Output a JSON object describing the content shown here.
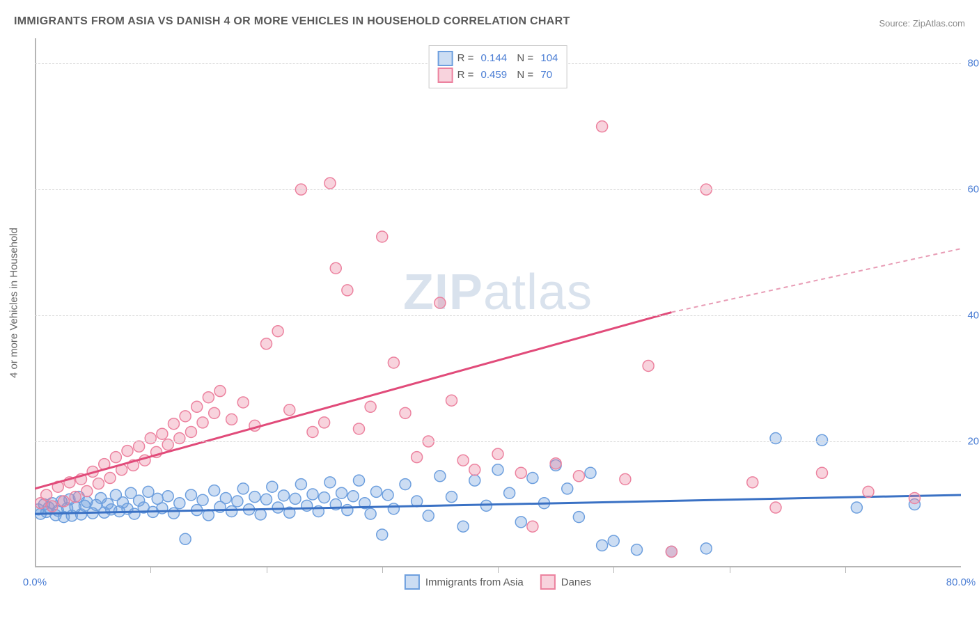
{
  "title": "IMMIGRANTS FROM ASIA VS DANISH 4 OR MORE VEHICLES IN HOUSEHOLD CORRELATION CHART",
  "source": "Source: ZipAtlas.com",
  "ylabel": "4 or more Vehicles in Household",
  "watermark": {
    "zip": "ZIP",
    "atlas": "atlas"
  },
  "chart": {
    "type": "scatter",
    "xlim": [
      0,
      80
    ],
    "ylim": [
      0,
      84
    ],
    "ytick_values": [
      20,
      40,
      60,
      80
    ],
    "ytick_labels": [
      "20.0%",
      "40.0%",
      "60.0%",
      "80.0%"
    ],
    "xtick_values": [
      0,
      80
    ],
    "xtick_labels": [
      "0.0%",
      "80.0%"
    ],
    "xtick_marks": [
      10,
      20,
      30,
      40,
      50,
      60,
      70
    ],
    "background": "#ffffff",
    "grid_color": "#d8d8d8",
    "axis_color": "#b5b5b5",
    "marker_radius": 8,
    "series": [
      {
        "name": "Immigrants from Asia",
        "fill": "rgba(109,159,222,0.35)",
        "stroke": "#6d9fde",
        "r": "0.144",
        "n": "104",
        "trend": {
          "x1": 0,
          "y1": 8.5,
          "x2": 80,
          "y2": 11.5,
          "color": "#3a71c4",
          "width": 3
        },
        "points": [
          [
            0.3,
            9.2
          ],
          [
            0.5,
            8.5
          ],
          [
            0.8,
            10
          ],
          [
            1,
            8.8
          ],
          [
            1.2,
            9.5
          ],
          [
            1.5,
            10.2
          ],
          [
            1.8,
            8.3
          ],
          [
            2,
            9.0
          ],
          [
            2.3,
            10.5
          ],
          [
            2.5,
            8.0
          ],
          [
            2.8,
            9.4
          ],
          [
            3,
            10.8
          ],
          [
            3.2,
            8.2
          ],
          [
            3.5,
            9.6
          ],
          [
            3.8,
            11.2
          ],
          [
            4,
            8.4
          ],
          [
            4.3,
            9.8
          ],
          [
            4.5,
            10.4
          ],
          [
            5,
            8.6
          ],
          [
            5.3,
            9.9
          ],
          [
            5.7,
            11
          ],
          [
            6,
            8.7
          ],
          [
            6.3,
            10.1
          ],
          [
            6.6,
            9.2
          ],
          [
            7,
            11.5
          ],
          [
            7.3,
            8.9
          ],
          [
            7.6,
            10.3
          ],
          [
            8,
            9.3
          ],
          [
            8.3,
            11.8
          ],
          [
            8.6,
            8.5
          ],
          [
            9,
            10.6
          ],
          [
            9.4,
            9.5
          ],
          [
            9.8,
            12
          ],
          [
            10.2,
            8.8
          ],
          [
            10.6,
            10.9
          ],
          [
            11,
            9.4
          ],
          [
            11.5,
            11.3
          ],
          [
            12,
            8.6
          ],
          [
            12.5,
            10.2
          ],
          [
            13,
            4.5
          ],
          [
            13.5,
            11.5
          ],
          [
            14,
            9.1
          ],
          [
            14.5,
            10.7
          ],
          [
            15,
            8.3
          ],
          [
            15.5,
            12.2
          ],
          [
            16,
            9.6
          ],
          [
            16.5,
            11
          ],
          [
            17,
            8.9
          ],
          [
            17.5,
            10.5
          ],
          [
            18,
            12.5
          ],
          [
            18.5,
            9.2
          ],
          [
            19,
            11.2
          ],
          [
            19.5,
            8.4
          ],
          [
            20,
            10.8
          ],
          [
            20.5,
            12.8
          ],
          [
            21,
            9.5
          ],
          [
            21.5,
            11.4
          ],
          [
            22,
            8.7
          ],
          [
            22.5,
            10.9
          ],
          [
            23,
            13.2
          ],
          [
            23.5,
            9.8
          ],
          [
            24,
            11.6
          ],
          [
            24.5,
            8.9
          ],
          [
            25,
            11.1
          ],
          [
            25.5,
            13.5
          ],
          [
            26,
            10
          ],
          [
            26.5,
            11.8
          ],
          [
            27,
            9.1
          ],
          [
            27.5,
            11.3
          ],
          [
            28,
            13.8
          ],
          [
            28.5,
            10.2
          ],
          [
            29,
            8.5
          ],
          [
            29.5,
            12
          ],
          [
            30,
            5.2
          ],
          [
            30.5,
            11.5
          ],
          [
            31,
            9.3
          ],
          [
            32,
            13.2
          ],
          [
            33,
            10.5
          ],
          [
            34,
            8.2
          ],
          [
            35,
            14.5
          ],
          [
            36,
            11.2
          ],
          [
            37,
            6.5
          ],
          [
            38,
            13.8
          ],
          [
            39,
            9.8
          ],
          [
            40,
            15.5
          ],
          [
            41,
            11.8
          ],
          [
            42,
            7.2
          ],
          [
            43,
            14.2
          ],
          [
            44,
            10.2
          ],
          [
            45,
            16.2
          ],
          [
            46,
            12.5
          ],
          [
            47,
            8.0
          ],
          [
            48,
            15
          ],
          [
            49,
            3.5
          ],
          [
            50,
            4.2
          ],
          [
            52,
            2.8
          ],
          [
            55,
            2.5
          ],
          [
            58,
            3.0
          ],
          [
            64,
            20.5
          ],
          [
            68,
            20.2
          ],
          [
            71,
            9.5
          ],
          [
            76,
            10.0
          ]
        ]
      },
      {
        "name": "Danes",
        "fill": "rgba(236,130,159,0.35)",
        "stroke": "#ec829f",
        "r": "0.459",
        "n": "70",
        "trend": {
          "x1": 0,
          "y1": 12.5,
          "x2": 55,
          "y2": 40.5,
          "color": "#e14b7a",
          "width": 3,
          "dash_extend": {
            "x2": 80,
            "y2": 50.6
          }
        },
        "points": [
          [
            0.5,
            10.2
          ],
          [
            1,
            11.5
          ],
          [
            1.5,
            9.7
          ],
          [
            2,
            12.8
          ],
          [
            2.5,
            10.5
          ],
          [
            3,
            13.5
          ],
          [
            3.5,
            11.2
          ],
          [
            4,
            14
          ],
          [
            4.5,
            12.1
          ],
          [
            5,
            15.2
          ],
          [
            5.5,
            13.3
          ],
          [
            6,
            16.4
          ],
          [
            6.5,
            14.2
          ],
          [
            7,
            17.5
          ],
          [
            7.5,
            15.5
          ],
          [
            8,
            18.5
          ],
          [
            8.5,
            16.2
          ],
          [
            9,
            19.2
          ],
          [
            9.5,
            17
          ],
          [
            10,
            20.5
          ],
          [
            10.5,
            18.3
          ],
          [
            11,
            21.2
          ],
          [
            11.5,
            19.5
          ],
          [
            12,
            22.8
          ],
          [
            12.5,
            20.5
          ],
          [
            13,
            24
          ],
          [
            13.5,
            21.5
          ],
          [
            14,
            25.5
          ],
          [
            14.5,
            23
          ],
          [
            15,
            27
          ],
          [
            15.5,
            24.5
          ],
          [
            16,
            28
          ],
          [
            17,
            23.5
          ],
          [
            18,
            26.2
          ],
          [
            19,
            22.5
          ],
          [
            20,
            35.5
          ],
          [
            21,
            37.5
          ],
          [
            22,
            25
          ],
          [
            23,
            60
          ],
          [
            24,
            21.5
          ],
          [
            25,
            23
          ],
          [
            25.5,
            61
          ],
          [
            26,
            47.5
          ],
          [
            27,
            44
          ],
          [
            28,
            22
          ],
          [
            29,
            25.5
          ],
          [
            30,
            52.5
          ],
          [
            31,
            32.5
          ],
          [
            32,
            24.5
          ],
          [
            33,
            17.5
          ],
          [
            34,
            20
          ],
          [
            35,
            42
          ],
          [
            36,
            26.5
          ],
          [
            37,
            17
          ],
          [
            38,
            15.5
          ],
          [
            40,
            18
          ],
          [
            42,
            15
          ],
          [
            43,
            6.5
          ],
          [
            45,
            16.5
          ],
          [
            47,
            14.5
          ],
          [
            49,
            70
          ],
          [
            51,
            14
          ],
          [
            53,
            32
          ],
          [
            55,
            2.5
          ],
          [
            58,
            60
          ],
          [
            62,
            13.5
          ],
          [
            64,
            9.5
          ],
          [
            68,
            15
          ],
          [
            72,
            12
          ],
          [
            76,
            11
          ]
        ]
      }
    ]
  },
  "bottom_legend": [
    {
      "swatch": "blue",
      "label": "Immigrants from Asia"
    },
    {
      "swatch": "pink",
      "label": "Danes"
    }
  ]
}
